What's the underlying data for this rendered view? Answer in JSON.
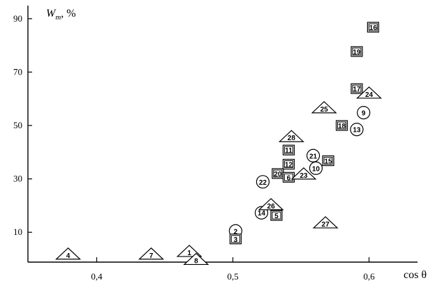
{
  "chart_data": {
    "type": "scatter",
    "title": "",
    "xlabel": "cos θ",
    "ylabel_main": "W",
    "ylabel_sub": "m",
    "ylabel_unit": ", %",
    "xlim": [
      0.35,
      0.65
    ],
    "ylim": [
      0,
      95
    ],
    "x_ticks": [
      {
        "value": 0.4,
        "label": "0,4"
      },
      {
        "value": 0.5,
        "label": "0,5"
      },
      {
        "value": 0.6,
        "label": "0,6"
      }
    ],
    "y_ticks": [
      {
        "value": 10,
        "label": "10"
      },
      {
        "value": 30,
        "label": "30"
      },
      {
        "value": 50,
        "label": "50"
      },
      {
        "value": 70,
        "label": "70"
      },
      {
        "value": 90,
        "label": "90"
      }
    ],
    "legend": null,
    "grid": false,
    "points": [
      {
        "label": "4",
        "shape": "triangle",
        "x": 0.379,
        "y": 1.5
      },
      {
        "label": "7",
        "shape": "triangle",
        "x": 0.44,
        "y": 1.5
      },
      {
        "label": "1",
        "shape": "triangle",
        "x": 0.468,
        "y": 2.5
      },
      {
        "label": "8",
        "shape": "triangle",
        "x": 0.473,
        "y": -0.5
      },
      {
        "label": "2",
        "shape": "circle",
        "x": 0.502,
        "y": 10.5
      },
      {
        "label": "3",
        "shape": "square",
        "x": 0.502,
        "y": 7.5
      },
      {
        "label": "14",
        "shape": "circle",
        "x": 0.521,
        "y": 17.3
      },
      {
        "label": "26",
        "shape": "triangle",
        "x": 0.528,
        "y": 20
      },
      {
        "label": "5",
        "shape": "square",
        "x": 0.532,
        "y": 16.3
      },
      {
        "label": "22",
        "shape": "circle",
        "x": 0.522,
        "y": 28.9
      },
      {
        "label": "20",
        "shape": "square",
        "x": 0.533,
        "y": 32.0
      },
      {
        "label": "6",
        "shape": "square",
        "x": 0.541,
        "y": 30.6
      },
      {
        "label": "12",
        "shape": "square",
        "x": 0.541,
        "y": 35.5
      },
      {
        "label": "11",
        "shape": "square",
        "x": 0.541,
        "y": 40.8
      },
      {
        "label": "28",
        "shape": "triangle",
        "x": 0.543,
        "y": 45.5
      },
      {
        "label": "23",
        "shape": "triangle",
        "x": 0.552,
        "y": 31.5
      },
      {
        "label": "21",
        "shape": "circle",
        "x": 0.559,
        "y": 38.7
      },
      {
        "label": "10",
        "shape": "circle",
        "x": 0.561,
        "y": 34.0
      },
      {
        "label": "15",
        "shape": "square",
        "x": 0.57,
        "y": 36.8
      },
      {
        "label": "25",
        "shape": "triangle",
        "x": 0.567,
        "y": 56.3
      },
      {
        "label": "27",
        "shape": "triangle",
        "x": 0.568,
        "y": 13.2
      },
      {
        "label": "18",
        "shape": "square",
        "x": 0.58,
        "y": 50.0
      },
      {
        "label": "13",
        "shape": "circle",
        "x": 0.591,
        "y": 48.5
      },
      {
        "label": "9",
        "shape": "circle",
        "x": 0.596,
        "y": 54.8
      },
      {
        "label": "17",
        "shape": "square",
        "x": 0.591,
        "y": 63.8
      },
      {
        "label": "24",
        "shape": "triangle",
        "x": 0.6,
        "y": 61.8
      },
      {
        "label": "19",
        "shape": "square",
        "x": 0.591,
        "y": 77.7
      },
      {
        "label": "16",
        "shape": "square",
        "x": 0.603,
        "y": 86.8
      }
    ]
  }
}
